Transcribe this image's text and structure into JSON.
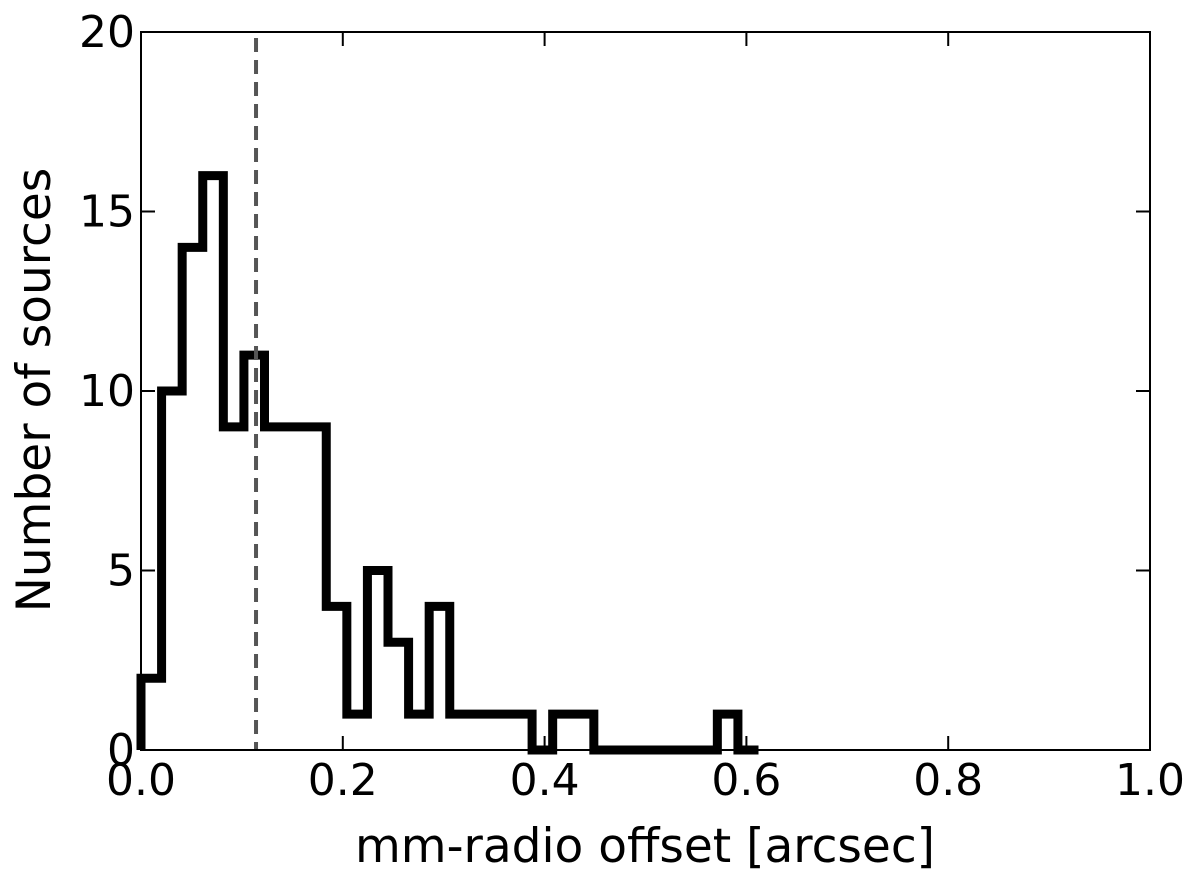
{
  "chart_data": {
    "type": "histogram",
    "xlabel": "mm-radio offset [arcsec]",
    "ylabel": "Number of sources",
    "xlim": [
      0.0,
      1.0
    ],
    "ylim": [
      0,
      20
    ],
    "xticks": [
      "0.0",
      "0.2",
      "0.4",
      "0.6",
      "0.8",
      "1.0"
    ],
    "yticks": [
      "0",
      "5",
      "10",
      "15",
      "20"
    ],
    "xtick_values": [
      0.0,
      0.2,
      0.4,
      0.6,
      0.8,
      1.0
    ],
    "ytick_values": [
      0,
      5,
      10,
      15,
      20
    ],
    "bin_width": 0.0204,
    "bin_edges_start": 0.0,
    "counts": [
      2,
      10,
      14,
      16,
      9,
      11,
      9,
      9,
      9,
      4,
      1,
      5,
      3,
      1,
      4,
      1,
      1,
      1,
      1,
      0,
      1,
      1,
      0,
      0,
      0,
      0,
      0,
      0,
      1,
      0
    ],
    "vline": {
      "x": 0.114,
      "style": "dashed",
      "color": "#555555"
    },
    "line_color": "#000000",
    "grid": false
  }
}
